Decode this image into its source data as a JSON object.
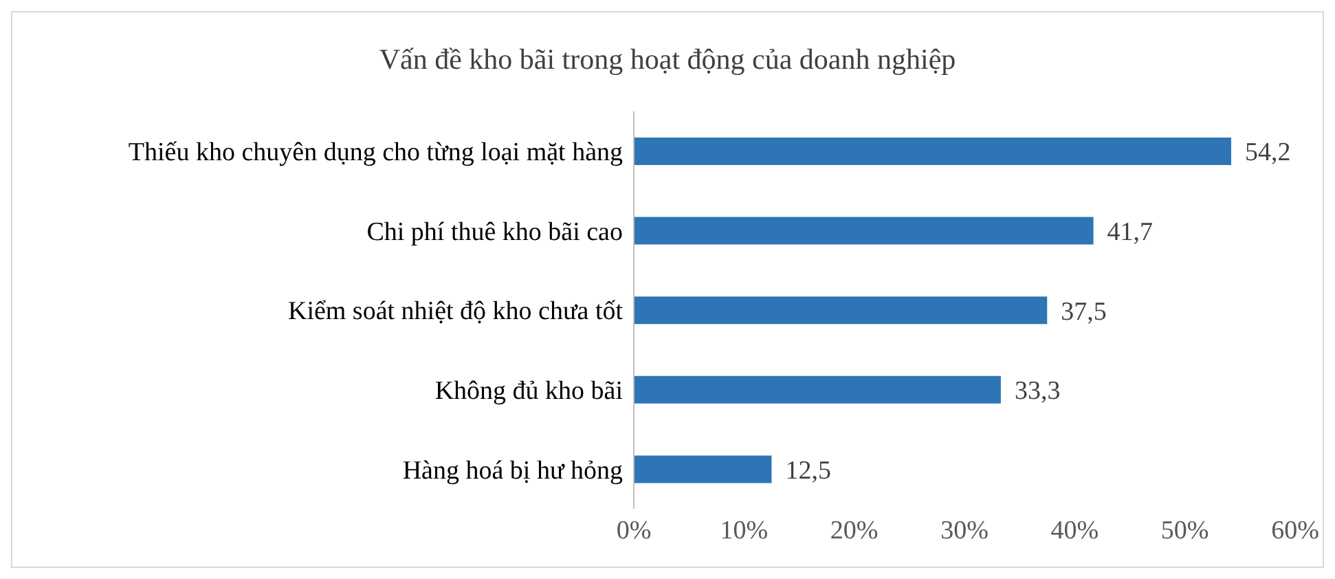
{
  "chart_data": {
    "type": "bar",
    "orientation": "horizontal",
    "title": "Vấn đề kho bãi trong hoạt động của doanh nghiệp",
    "categories": [
      "Thiếu kho chuyên dụng cho từng loại mặt hàng",
      "Chi phí thuê kho bãi cao",
      "Kiểm soát nhiệt độ kho chưa tốt",
      "Không đủ kho bãi",
      "Hàng hoá bị hư hỏng"
    ],
    "values": [
      54.2,
      41.7,
      37.5,
      33.3,
      12.5
    ],
    "value_labels": [
      "54,2",
      "41,7",
      "37,5",
      "33,3",
      "12,5"
    ],
    "color": "#2e75b6",
    "xlim": [
      0,
      60
    ],
    "xticks": [
      {
        "value": 0,
        "label": "0%"
      },
      {
        "value": 10,
        "label": "10%"
      },
      {
        "value": 20,
        "label": "20%"
      },
      {
        "value": 30,
        "label": "30%"
      },
      {
        "value": 40,
        "label": "40%"
      },
      {
        "value": 50,
        "label": "50%"
      },
      {
        "value": 60,
        "label": "60%"
      }
    ],
    "grid": false,
    "legend": false
  }
}
